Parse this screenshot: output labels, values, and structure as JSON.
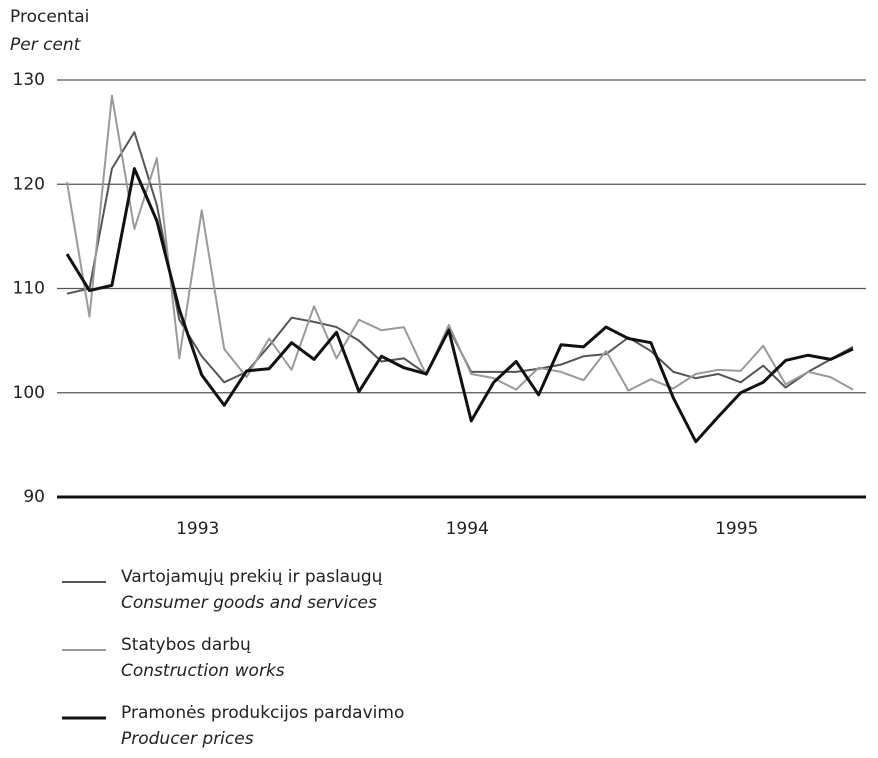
{
  "chart_data": {
    "type": "line",
    "y_label": "Procentai",
    "y_label_en": "Per cent",
    "categories": [
      null,
      null,
      null,
      null,
      null,
      null,
      "1993",
      null,
      null,
      null,
      null,
      null,
      null,
      null,
      null,
      null,
      null,
      null,
      "1994",
      null,
      null,
      null,
      null,
      null,
      null,
      null,
      null,
      null,
      null,
      null,
      "1995",
      null,
      null,
      null,
      null,
      null
    ],
    "series": [
      {
        "name": "Vartojamųjų prekių ir paslaugų",
        "name_en": "Consumer goods and services",
        "color": "#555555",
        "values": [
          109.5,
          110,
          121.5,
          125,
          118,
          107,
          103.5,
          101,
          102,
          104.5,
          107.2,
          106.8,
          106.3,
          105,
          103,
          103.3,
          101.8,
          106.2,
          102,
          102,
          102,
          102.3,
          102.7,
          103.5,
          103.7,
          105.3,
          104,
          102,
          101.4,
          101.8,
          101,
          102.6,
          100.5,
          102,
          103.2,
          104.4
        ]
      },
      {
        "name": "Statybos darbų",
        "name_en": "Construction works",
        "color": "#9a9a9a",
        "values": [
          120.2,
          107.3,
          128.5,
          115.7,
          122.5,
          103.3,
          117.5,
          104.2,
          101.5,
          105.2,
          102.2,
          108.3,
          103.3,
          107,
          106,
          106.3,
          101.7,
          106.5,
          101.8,
          101.4,
          100.3,
          102.4,
          102,
          101.2,
          104,
          100.2,
          101.3,
          100.4,
          101.8,
          102.2,
          102.1,
          104.5,
          100.8,
          102,
          101.5,
          100.3
        ]
      },
      {
        "name": "Pramonės produkcijos pardavimo",
        "name_en": "Producer prices",
        "color": "#111111",
        "values": [
          113.3,
          109.8,
          110.3,
          121.5,
          116.5,
          108,
          101.7,
          98.8,
          102.1,
          102.3,
          104.8,
          103.2,
          105.8,
          100.1,
          103.5,
          102.4,
          101.8,
          106,
          97.3,
          101,
          103,
          99.8,
          104.6,
          104.4,
          106.3,
          105.2,
          104.8,
          99.5,
          95.3,
          97.7,
          100,
          101,
          103.1,
          103.6,
          103.2,
          104.2
        ]
      }
    ],
    "ylim": [
      90,
      130
    ],
    "yticks": [
      90,
      100,
      110,
      120,
      130
    ],
    "grid": true
  }
}
